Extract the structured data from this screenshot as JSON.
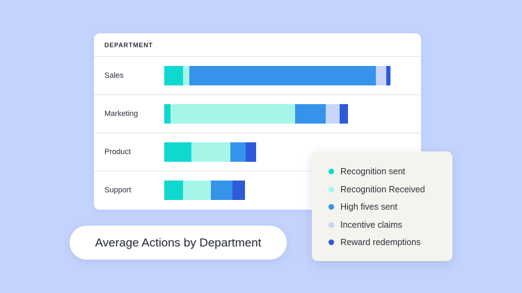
{
  "chart_data": {
    "type": "bar",
    "orientation": "horizontal",
    "stacked": true,
    "title": "Average Actions by Department",
    "category_header": "DEPARTMENT",
    "categories": [
      "Sales",
      "Marketing",
      "Product",
      "Support"
    ],
    "series": [
      {
        "name": "Recognition sent",
        "color": "#0fd9cf",
        "values": [
          27,
          9,
          39,
          27
        ]
      },
      {
        "name": "Recognition Received",
        "color": "#a5f5e9",
        "values": [
          9,
          179,
          56,
          40
        ]
      },
      {
        "name": "High fives sent",
        "color": "#3594ea",
        "values": [
          268,
          44,
          22,
          31
        ]
      },
      {
        "name": "Incentive claims",
        "color": "#c5d6fa",
        "values": [
          15,
          20,
          0,
          0
        ]
      },
      {
        "name": "Reward redemptions",
        "color": "#2e5ada",
        "values": [
          6,
          12,
          15,
          18
        ]
      }
    ],
    "xlim": [
      0,
      344
    ],
    "grid": false,
    "axis_ticks": false,
    "legend_position": "bottom-right"
  }
}
